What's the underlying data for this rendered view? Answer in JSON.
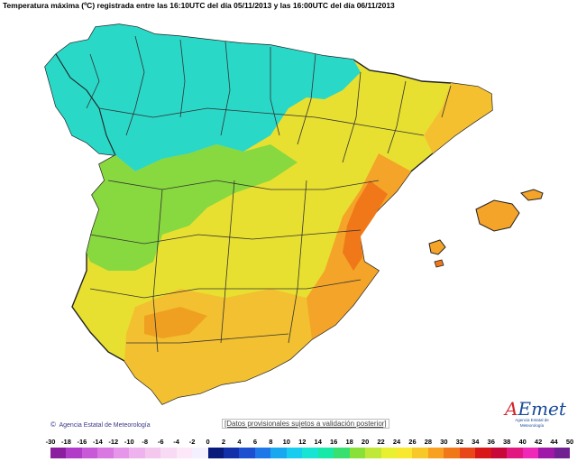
{
  "title": "Temperatura máxima (ºC) registrada entre las 16:10UTC del día 05/11/2013 y las 16:00UTC del día 06/11/2013",
  "credit": "Agencia Estatal de Meteorología",
  "disclaimer": "[Datos provisionales sujetos a validación posterior]",
  "logo": {
    "mark_a": "A",
    "mark_e": "E",
    "mark_rest": "met",
    "sub": "Agencia Estatal de Meteorología"
  },
  "regions": {
    "north_west": "teal",
    "central_plateau": "yellow",
    "valencia_coast": "orange",
    "andalusia": "yellow-orange",
    "balearic_islands": "orange"
  },
  "legend": {
    "labels": [
      "-30",
      "-18",
      "-16",
      "-14",
      "-12",
      "-10",
      "-8",
      "-6",
      "-4",
      "-2",
      "0",
      "2",
      "4",
      "6",
      "8",
      "10",
      "12",
      "14",
      "16",
      "18",
      "20",
      "22",
      "24",
      "26",
      "28",
      "30",
      "32",
      "34",
      "36",
      "38",
      "40",
      "42",
      "44",
      "50"
    ],
    "colors": [
      "#8b1e9e",
      "#b03cc8",
      "#c85ad8",
      "#d878e0",
      "#e596e8",
      "#eeb2ee",
      "#f4c8ee",
      "#f8daf4",
      "#fce8f8",
      "#f4f0ff",
      "#081a7a",
      "#1230a8",
      "#1c50d0",
      "#1e78e8",
      "#18a8f0",
      "#18ccf0",
      "#18e4d4",
      "#18e8a8",
      "#38e070",
      "#88e038",
      "#c0e838",
      "#e8f030",
      "#f8e830",
      "#f8c828",
      "#f8a020",
      "#f07818",
      "#e84818",
      "#d81818",
      "#c80838",
      "#e01880",
      "#f028b8",
      "#a018a8",
      "#702090"
    ]
  }
}
